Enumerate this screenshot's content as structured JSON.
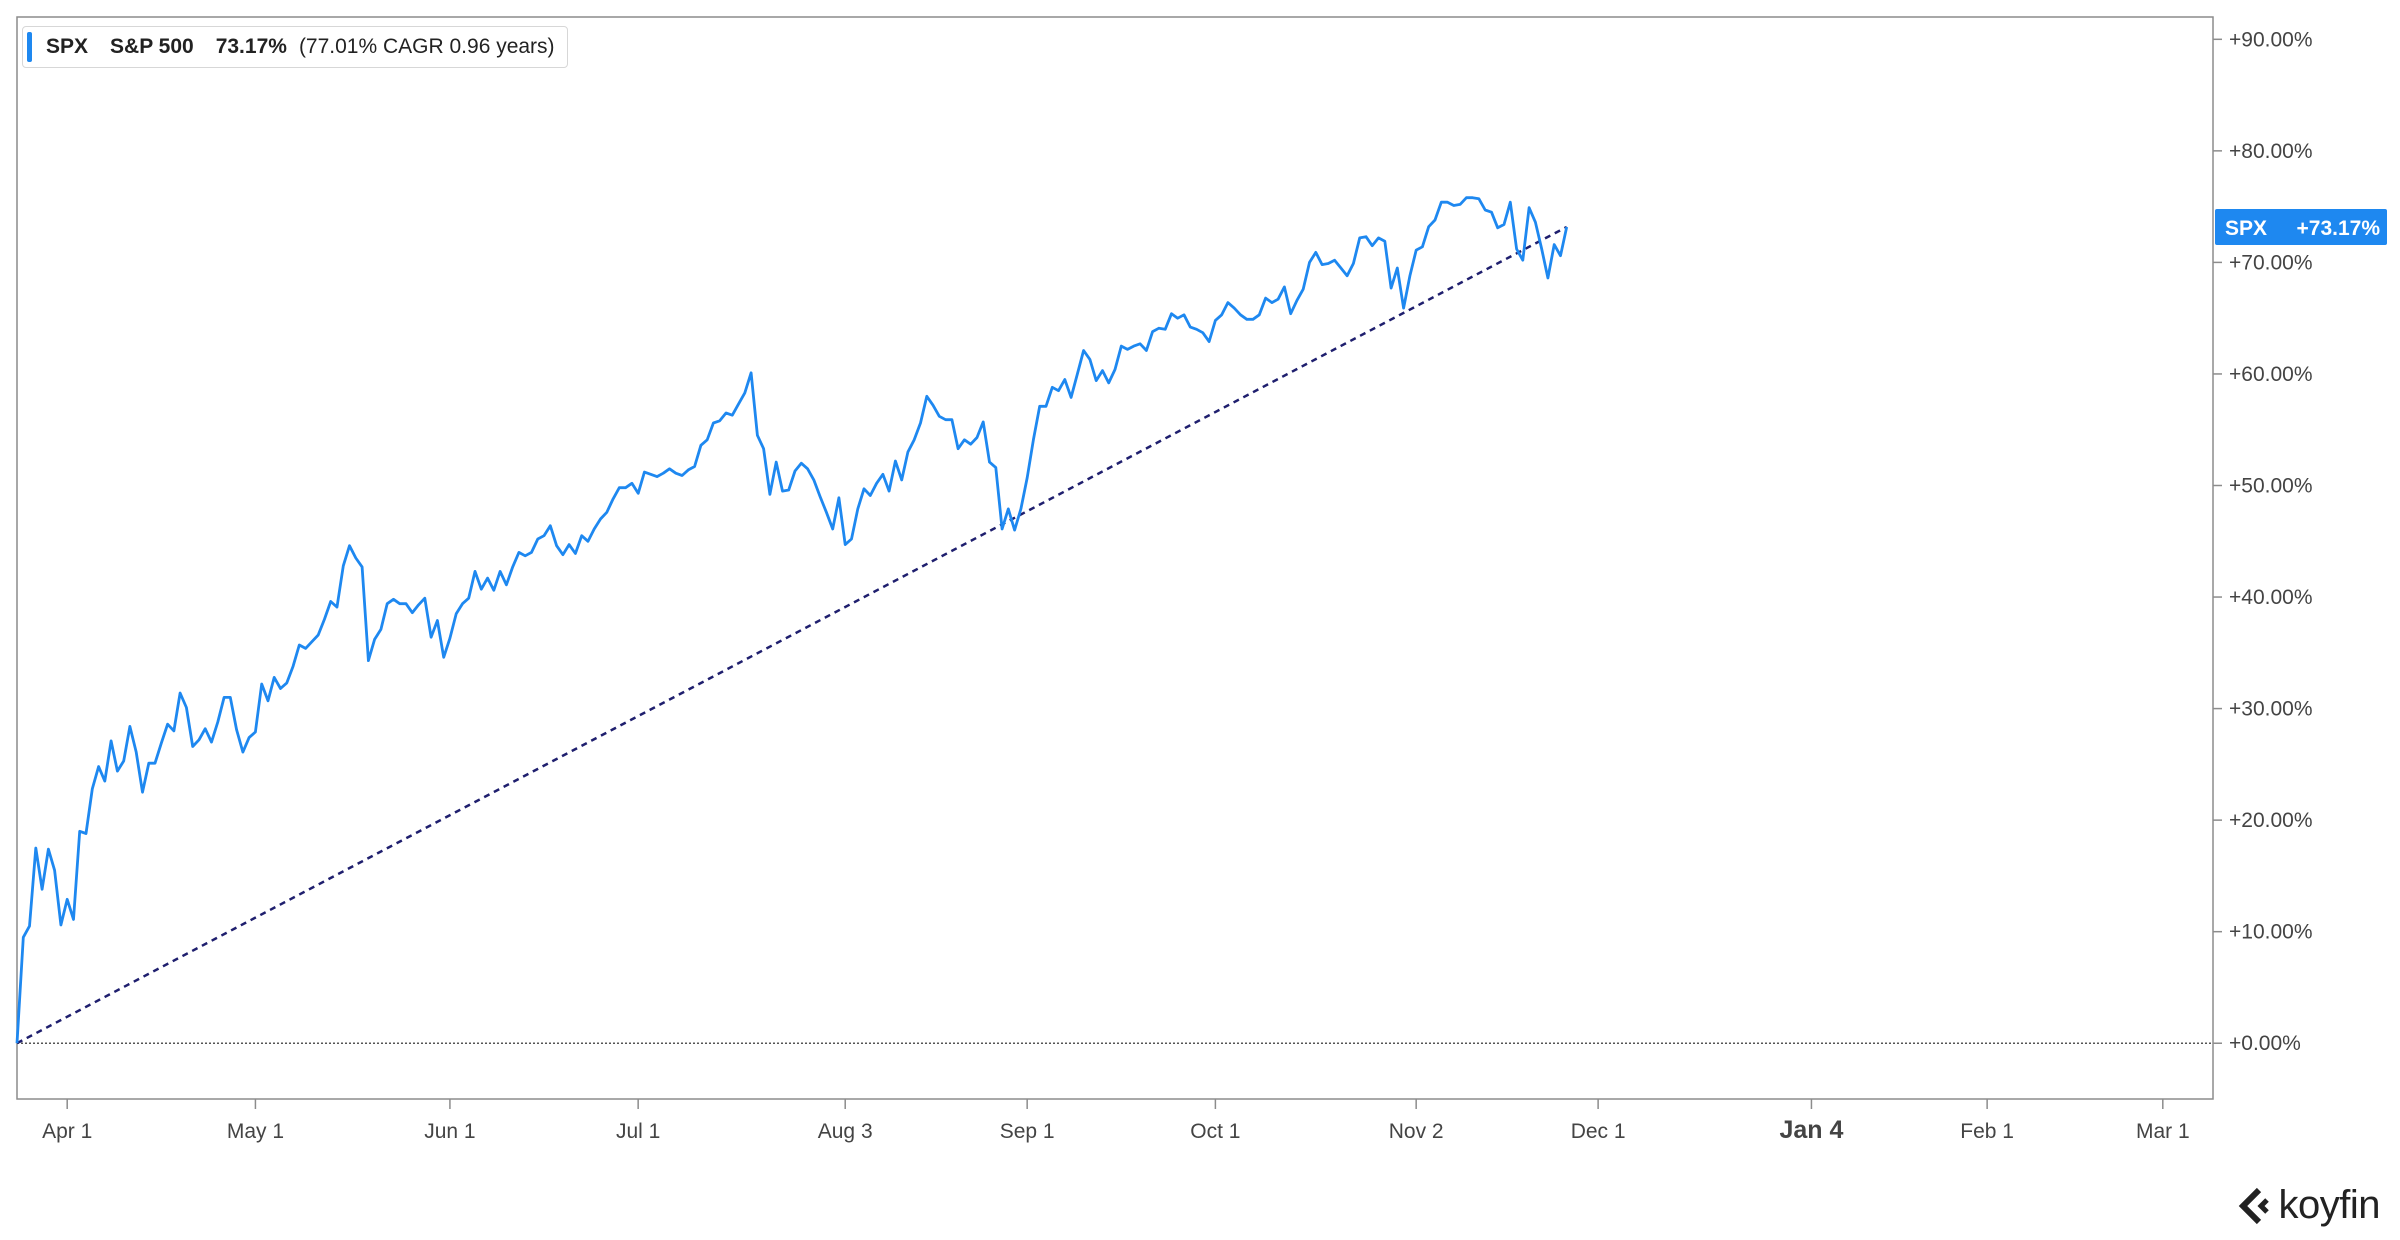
{
  "legend": {
    "ticker": "SPX",
    "name": "S&P 500",
    "return": "73.17%",
    "cagr_text": "(77.01% CAGR 0.96 years)",
    "color": "#1e88f0"
  },
  "price_tag": {
    "ticker": "SPX",
    "value": "+73.17%"
  },
  "logo": {
    "text": "koyfin"
  },
  "chart_data": {
    "type": "line",
    "title": "",
    "xlabel": "",
    "ylabel": "",
    "x_ticks": [
      {
        "label": "Apr 1",
        "day": 8
      },
      {
        "label": "May 1",
        "day": 38
      },
      {
        "label": "Jun 1",
        "day": 69
      },
      {
        "label": "Jul 1",
        "day": 99
      },
      {
        "label": "Aug 3",
        "day": 132
      },
      {
        "label": "Sep 1",
        "day": 161
      },
      {
        "label": "Oct 1",
        "day": 191
      },
      {
        "label": "Nov 2",
        "day": 223
      },
      {
        "label": "Dec 1",
        "day": 252
      },
      {
        "label": "Jan 4",
        "day": 286,
        "bold": true
      },
      {
        "label": "Feb 1",
        "day": 314
      },
      {
        "label": "Mar 1",
        "day": 342
      }
    ],
    "xlim": [
      0,
      350
    ],
    "ylim": [
      -5,
      92
    ],
    "y_ticks": [
      0,
      10,
      20,
      30,
      40,
      50,
      60,
      70,
      80,
      90
    ],
    "y_tick_labels": [
      "+0.00%",
      "+10.00%",
      "+20.00%",
      "+30.00%",
      "+40.00%",
      "+50.00%",
      "+60.00%",
      "+70.00%",
      "+80.00%",
      "+90.00%"
    ],
    "grid": false,
    "series": [
      {
        "name": "SPX",
        "color": "#1e88f0",
        "points": [
          [
            0,
            0
          ],
          [
            1,
            9.5
          ],
          [
            2,
            10.5
          ],
          [
            3,
            17.5
          ],
          [
            4,
            13.8
          ],
          [
            5,
            17.4
          ],
          [
            6,
            15.5
          ],
          [
            7,
            10.6
          ],
          [
            8,
            12.9
          ],
          [
            9,
            11.1
          ],
          [
            10,
            19
          ],
          [
            11,
            18.8
          ],
          [
            12,
            22.8
          ],
          [
            13,
            24.8
          ],
          [
            14,
            23.5
          ],
          [
            15,
            27.1
          ],
          [
            16,
            24.4
          ],
          [
            17,
            25.3
          ],
          [
            18,
            28.4
          ],
          [
            19,
            26.1
          ],
          [
            20,
            22.5
          ],
          [
            21,
            25.1
          ],
          [
            22,
            25.1
          ],
          [
            23,
            26.9
          ],
          [
            24,
            28.6
          ],
          [
            25,
            28
          ],
          [
            26,
            31.4
          ],
          [
            27,
            30.1
          ],
          [
            28,
            26.6
          ],
          [
            29,
            27.2
          ],
          [
            30,
            28.2
          ],
          [
            31,
            27
          ],
          [
            32,
            28.8
          ],
          [
            33,
            31
          ],
          [
            34,
            31
          ],
          [
            35,
            28.1
          ],
          [
            36,
            26.1
          ],
          [
            37,
            27.4
          ],
          [
            38,
            27.9
          ],
          [
            39,
            32.2
          ],
          [
            40,
            30.7
          ],
          [
            41,
            32.8
          ],
          [
            42,
            31.8
          ],
          [
            43,
            32.3
          ],
          [
            44,
            33.8
          ],
          [
            45,
            35.7
          ],
          [
            46,
            35.4
          ],
          [
            47,
            36
          ],
          [
            48,
            36.6
          ],
          [
            49,
            38
          ],
          [
            50,
            39.6
          ],
          [
            51,
            39.1
          ],
          [
            52,
            42.8
          ],
          [
            53,
            44.6
          ],
          [
            54,
            43.5
          ],
          [
            55,
            42.7
          ],
          [
            56,
            34.3
          ],
          [
            57,
            36.2
          ],
          [
            58,
            37.1
          ],
          [
            59,
            39.4
          ],
          [
            60,
            39.8
          ],
          [
            61,
            39.4
          ],
          [
            62,
            39.4
          ],
          [
            63,
            38.6
          ],
          [
            64,
            39.3
          ],
          [
            65,
            39.9
          ],
          [
            66,
            36.4
          ],
          [
            67,
            37.9
          ],
          [
            68,
            34.6
          ],
          [
            69,
            36.3
          ],
          [
            70,
            38.5
          ],
          [
            71,
            39.4
          ],
          [
            72,
            39.9
          ],
          [
            73,
            42.3
          ],
          [
            74,
            40.7
          ],
          [
            75,
            41.7
          ],
          [
            76,
            40.6
          ],
          [
            77,
            42.3
          ],
          [
            78,
            41.1
          ],
          [
            79,
            42.7
          ],
          [
            80,
            44
          ],
          [
            81,
            43.7
          ],
          [
            82,
            44
          ],
          [
            83,
            45.2
          ],
          [
            84,
            45.5
          ],
          [
            85,
            46.4
          ],
          [
            86,
            44.6
          ],
          [
            87,
            43.8
          ],
          [
            88,
            44.7
          ],
          [
            89,
            43.9
          ],
          [
            90,
            45.5
          ],
          [
            91,
            45
          ],
          [
            92,
            46.1
          ],
          [
            93,
            47
          ],
          [
            94,
            47.6
          ],
          [
            95,
            48.8
          ],
          [
            96,
            49.8
          ],
          [
            97,
            49.8
          ],
          [
            98,
            50.2
          ],
          [
            99,
            49.3
          ],
          [
            100,
            51.2
          ],
          [
            101,
            51
          ],
          [
            102,
            50.8
          ],
          [
            103,
            51.1
          ],
          [
            104,
            51.5
          ],
          [
            105,
            51.1
          ],
          [
            106,
            50.9
          ],
          [
            107,
            51.4
          ],
          [
            108,
            51.7
          ],
          [
            109,
            53.6
          ],
          [
            110,
            54.1
          ],
          [
            111,
            55.6
          ],
          [
            112,
            55.8
          ],
          [
            113,
            56.5
          ],
          [
            114,
            56.3
          ],
          [
            115,
            57.3
          ],
          [
            116,
            58.3
          ],
          [
            117,
            60.1
          ],
          [
            118,
            54.5
          ],
          [
            119,
            53.3
          ],
          [
            120,
            49.2
          ],
          [
            121,
            52.1
          ],
          [
            122,
            49.5
          ],
          [
            123,
            49.6
          ],
          [
            124,
            51.3
          ],
          [
            125,
            52
          ],
          [
            126,
            51.5
          ],
          [
            127,
            50.5
          ],
          [
            128,
            49
          ],
          [
            129,
            47.6
          ],
          [
            130,
            46.1
          ],
          [
            131,
            48.9
          ],
          [
            132,
            44.7
          ],
          [
            133,
            45.2
          ],
          [
            134,
            47.9
          ],
          [
            135,
            49.7
          ],
          [
            136,
            49.1
          ],
          [
            137,
            50.2
          ],
          [
            138,
            51
          ],
          [
            139,
            49.5
          ],
          [
            140,
            52.2
          ],
          [
            141,
            50.5
          ],
          [
            142,
            53
          ],
          [
            143,
            54.1
          ],
          [
            144,
            55.6
          ],
          [
            145,
            58
          ],
          [
            146,
            57.2
          ],
          [
            147,
            56.2
          ],
          [
            148,
            55.9
          ],
          [
            149,
            55.9
          ],
          [
            150,
            53.3
          ],
          [
            151,
            54.1
          ],
          [
            152,
            53.7
          ],
          [
            153,
            54.3
          ],
          [
            154,
            55.7
          ],
          [
            155,
            52.1
          ],
          [
            156,
            51.6
          ],
          [
            157,
            46.1
          ],
          [
            158,
            47.9
          ],
          [
            159,
            46
          ],
          [
            160,
            47.9
          ],
          [
            161,
            50.7
          ],
          [
            162,
            54.1
          ],
          [
            163,
            57.1
          ],
          [
            164,
            57.1
          ],
          [
            165,
            58.8
          ],
          [
            166,
            58.5
          ],
          [
            167,
            59.5
          ],
          [
            168,
            57.9
          ],
          [
            169,
            60
          ],
          [
            170,
            62.1
          ],
          [
            171,
            61.3
          ],
          [
            172,
            59.4
          ],
          [
            173,
            60.3
          ],
          [
            174,
            59.2
          ],
          [
            175,
            60.4
          ],
          [
            176,
            62.5
          ],
          [
            177,
            62.2
          ],
          [
            178,
            62.5
          ],
          [
            179,
            62.7
          ],
          [
            180,
            62.1
          ],
          [
            181,
            63.8
          ],
          [
            182,
            64.1
          ],
          [
            183,
            64
          ],
          [
            184,
            65.4
          ],
          [
            185,
            65
          ],
          [
            186,
            65.3
          ],
          [
            187,
            64.2
          ],
          [
            188,
            64
          ],
          [
            189,
            63.7
          ],
          [
            190,
            62.9
          ],
          [
            191,
            64.8
          ],
          [
            192,
            65.3
          ],
          [
            193,
            66.4
          ],
          [
            194,
            65.9
          ],
          [
            195,
            65.3
          ],
          [
            196,
            64.9
          ],
          [
            197,
            64.9
          ],
          [
            198,
            65.3
          ],
          [
            199,
            66.8
          ],
          [
            200,
            66.4
          ],
          [
            201,
            66.7
          ],
          [
            202,
            67.8
          ],
          [
            203,
            65.4
          ],
          [
            204,
            66.6
          ],
          [
            205,
            67.6
          ],
          [
            206,
            70
          ],
          [
            207,
            70.9
          ],
          [
            208,
            69.8
          ],
          [
            209,
            69.9
          ],
          [
            210,
            70.2
          ],
          [
            211,
            69.5
          ],
          [
            212,
            68.8
          ],
          [
            213,
            69.9
          ],
          [
            214,
            72.2
          ],
          [
            215,
            72.3
          ],
          [
            216,
            71.5
          ],
          [
            217,
            72.2
          ],
          [
            218,
            71.9
          ],
          [
            219,
            67.7
          ],
          [
            220,
            69.5
          ],
          [
            221,
            65.9
          ],
          [
            222,
            68.8
          ],
          [
            223,
            71.1
          ],
          [
            224,
            71.4
          ],
          [
            225,
            73.2
          ],
          [
            226,
            73.8
          ],
          [
            227,
            75.4
          ],
          [
            228,
            75.4
          ],
          [
            229,
            75.1
          ],
          [
            230,
            75.2
          ],
          [
            231,
            75.8
          ],
          [
            232,
            75.8
          ],
          [
            233,
            75.7
          ],
          [
            234,
            74.7
          ],
          [
            235,
            74.5
          ],
          [
            236,
            73.1
          ],
          [
            237,
            73.4
          ],
          [
            238,
            75.4
          ],
          [
            239,
            71.2
          ],
          [
            240,
            70.2
          ],
          [
            241,
            74.9
          ],
          [
            242,
            73.6
          ],
          [
            243,
            71.2
          ],
          [
            244,
            68.6
          ],
          [
            245,
            71.6
          ],
          [
            246,
            70.6
          ],
          [
            247,
            73.17
          ]
        ]
      },
      {
        "name": "",
        "style": "dotted",
        "color": "#1f1f6e",
        "points": [
          [
            0,
            0
          ],
          [
            247,
            73.17
          ]
        ]
      }
    ]
  }
}
